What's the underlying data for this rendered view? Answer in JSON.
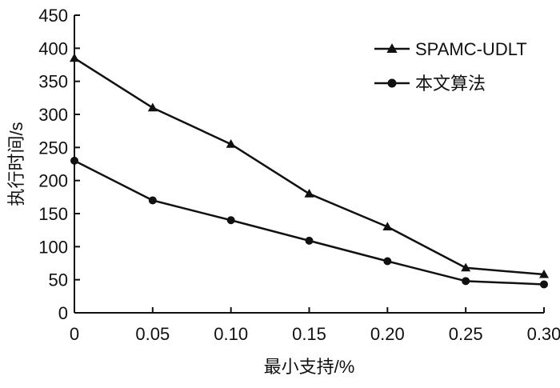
{
  "chart_data": {
    "type": "line",
    "xlabel": "最小支持/%",
    "ylabel": "执行时间/s",
    "x": [
      0,
      0.05,
      0.1,
      0.15,
      0.2,
      0.25,
      0.3
    ],
    "x_tick_labels": [
      "0",
      "0.05",
      "0.10",
      "0.15",
      "0.20",
      "0.25",
      "0.30"
    ],
    "y_ticks": [
      0,
      50,
      100,
      150,
      200,
      250,
      300,
      350,
      400,
      450
    ],
    "xlim": [
      0,
      0.3
    ],
    "ylim": [
      0,
      450
    ],
    "grid": false,
    "legend_position": "top-right",
    "series": [
      {
        "name": "SPAMC-UDLT",
        "marker": "triangle",
        "values": [
          385,
          310,
          255,
          180,
          130,
          68,
          58
        ]
      },
      {
        "name": "本文算法",
        "marker": "circle",
        "values": [
          230,
          170,
          140,
          109,
          78,
          48,
          43
        ]
      }
    ],
    "colors": {
      "line": "#111111",
      "marker": "#111111"
    }
  }
}
